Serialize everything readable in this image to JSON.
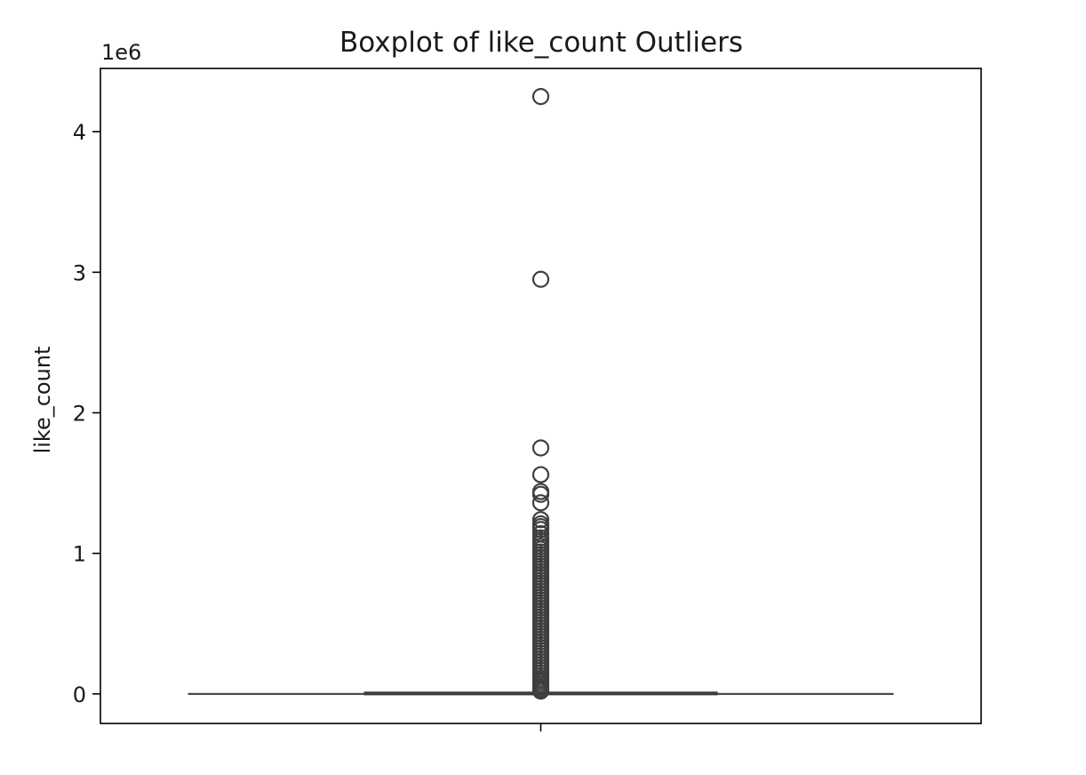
{
  "chart_data": {
    "type": "box",
    "title": "Boxplot of like_count Outliers",
    "xlabel": "",
    "ylabel": "like_count",
    "y_offset_label": "1e6",
    "y_scale": 1000000,
    "ylim": [
      -210000,
      4450000
    ],
    "y_ticks": [
      0,
      1000000,
      2000000,
      3000000,
      4000000
    ],
    "y_tick_labels": [
      "0",
      "1",
      "2",
      "3",
      "4"
    ],
    "grid": false,
    "legend": "none",
    "box": {
      "q1": 300,
      "median": 1500,
      "q3": 6500,
      "whisker_low": 0,
      "whisker_high": 16000
    },
    "outliers": [
      4250000,
      2950000,
      1750000,
      1560000,
      1440000,
      1420000,
      1360000,
      1240000,
      1210000,
      1190000,
      1170000,
      1140000,
      1110000,
      1090000,
      1070000,
      1050000,
      1030000,
      1010000,
      990000,
      970000,
      950000,
      930000,
      910000,
      890000,
      870000,
      850000,
      830000,
      810000,
      790000,
      770000,
      750000,
      730000,
      710000,
      690000,
      670000,
      650000,
      630000,
      610000,
      590000,
      570000,
      550000,
      530000,
      510000,
      490000,
      470000,
      450000,
      430000,
      410000,
      390000,
      370000,
      350000,
      330000,
      310000,
      290000,
      270000,
      250000,
      230000,
      210000,
      190000,
      170000,
      150000,
      130000,
      110000,
      95000,
      80000,
      65000,
      50000,
      40000,
      30000,
      25000,
      20000
    ],
    "colors": {
      "box_edge": "#3f3f3f",
      "box_fill": "#3274a1",
      "outlier": "#3f3f3f",
      "axes": "#000000"
    }
  }
}
